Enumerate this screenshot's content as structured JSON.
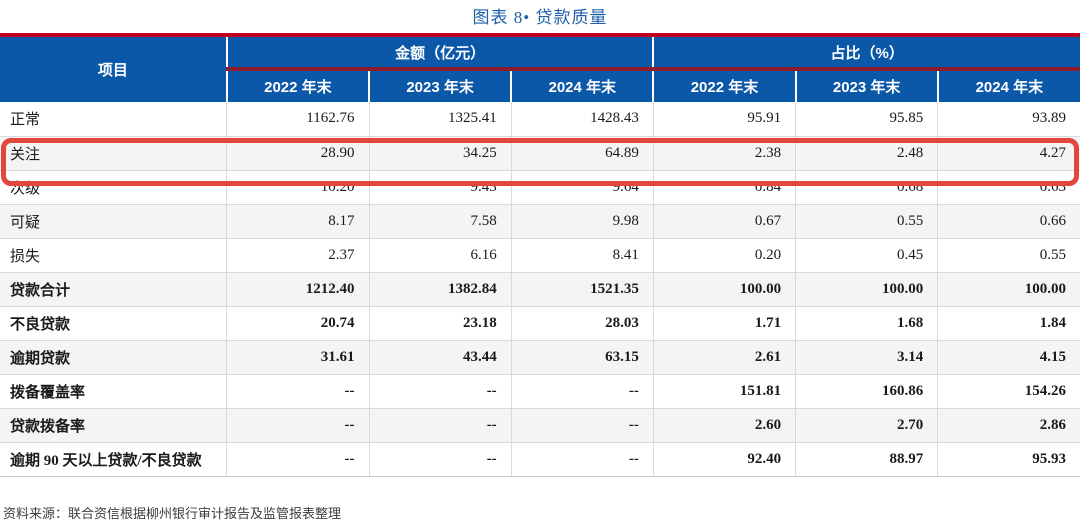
{
  "title": "图表 8• 贷款质量",
  "table": {
    "item_header": "项目",
    "group_headers": [
      "金额（亿元）",
      "占比（%）"
    ],
    "year_headers": [
      "2022 年末",
      "2023 年末",
      "2024 年末",
      "2022 年末",
      "2023 年末",
      "2024 年末"
    ],
    "rows": [
      {
        "label": "正常",
        "values": [
          "1162.76",
          "1325.41",
          "1428.43",
          "95.91",
          "95.85",
          "93.89"
        ],
        "bold": false,
        "highlight": false
      },
      {
        "label": "关注",
        "values": [
          "28.90",
          "34.25",
          "64.89",
          "2.38",
          "2.48",
          "4.27"
        ],
        "bold": false,
        "highlight": true
      },
      {
        "label": "次级",
        "values": [
          "10.20",
          "9.43",
          "9.64",
          "0.84",
          "0.68",
          "0.63"
        ],
        "bold": false,
        "highlight": false
      },
      {
        "label": "可疑",
        "values": [
          "8.17",
          "7.58",
          "9.98",
          "0.67",
          "0.55",
          "0.66"
        ],
        "bold": false,
        "highlight": false
      },
      {
        "label": "损失",
        "values": [
          "2.37",
          "6.16",
          "8.41",
          "0.20",
          "0.45",
          "0.55"
        ],
        "bold": false,
        "highlight": false
      },
      {
        "label": "贷款合计",
        "values": [
          "1212.40",
          "1382.84",
          "1521.35",
          "100.00",
          "100.00",
          "100.00"
        ],
        "bold": true,
        "highlight": false
      },
      {
        "label": "不良贷款",
        "values": [
          "20.74",
          "23.18",
          "28.03",
          "1.71",
          "1.68",
          "1.84"
        ],
        "bold": true,
        "highlight": false
      },
      {
        "label": "逾期贷款",
        "values": [
          "31.61",
          "43.44",
          "63.15",
          "2.61",
          "3.14",
          "4.15"
        ],
        "bold": true,
        "highlight": false
      },
      {
        "label": "拨备覆盖率",
        "values": [
          "--",
          "--",
          "--",
          "151.81",
          "160.86",
          "154.26"
        ],
        "bold": true,
        "highlight": false
      },
      {
        "label": "贷款拨备率",
        "values": [
          "--",
          "--",
          "--",
          "2.60",
          "2.70",
          "2.86"
        ],
        "bold": true,
        "highlight": false
      },
      {
        "label": "逾期 90 天以上贷款/不良贷款",
        "values": [
          "--",
          "--",
          "--",
          "92.40",
          "88.97",
          "95.93"
        ],
        "bold": true,
        "highlight": false
      }
    ]
  },
  "source": "资料来源：联合资信根据柳州银行审计报告及监管报表整理",
  "colors": {
    "accent_blue": "#0B57A8",
    "title_blue": "#2060A8",
    "top_red": "#C00021",
    "dark_red": "#8E1B2E",
    "highlight_red": "#E2473F",
    "zebra": "#F4F4F4"
  }
}
